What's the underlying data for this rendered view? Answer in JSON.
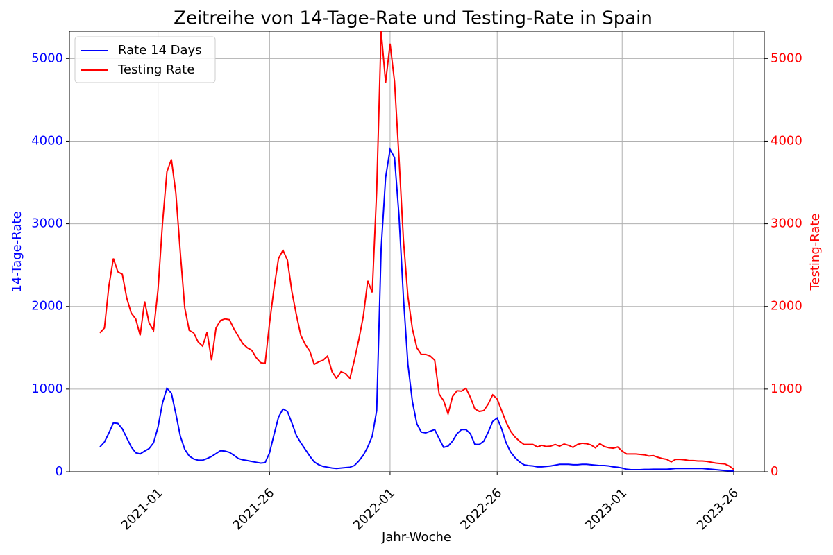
{
  "chart_data": {
    "type": "line",
    "title": "Zeitreihe von 14-Tage-Rate und Testing-Rate in Spain",
    "xlabel": "Jahr-Woche",
    "ylabel": "14-Tage-Rate",
    "y2label": "Testing-Rate",
    "categories": [
      null,
      null,
      null,
      null,
      null,
      null,
      null,
      null,
      null,
      null,
      null,
      null,
      null,
      "2021-01",
      null,
      null,
      null,
      null,
      null,
      null,
      null,
      null,
      null,
      null,
      null,
      null,
      null,
      null,
      null,
      null,
      null,
      null,
      null,
      null,
      null,
      null,
      null,
      null,
      "2021-26",
      null,
      null,
      null,
      null,
      null,
      null,
      null,
      null,
      null,
      null,
      null,
      null,
      null,
      null,
      null,
      null,
      null,
      null,
      null,
      null,
      null,
      null,
      null,
      null,
      null,
      null,
      "2022-01",
      null,
      null,
      null,
      null,
      null,
      null,
      null,
      null,
      null,
      null,
      null,
      null,
      null,
      null,
      null,
      null,
      null,
      null,
      null,
      null,
      null,
      null,
      null,
      "2022-26",
      null,
      null,
      null,
      null,
      null,
      null,
      null,
      null,
      null,
      null,
      null,
      null,
      null,
      null,
      null,
      null,
      null,
      null,
      null,
      null,
      null,
      null,
      null,
      null,
      null,
      null,
      null,
      "2023-01",
      null,
      null,
      null,
      null,
      null,
      null,
      null,
      null,
      null,
      null,
      null,
      null,
      null,
      null,
      null,
      null,
      null,
      null,
      null,
      null,
      null,
      null,
      null,
      null,
      "2023-26"
    ],
    "series": [
      {
        "name": "Rate 14 Days",
        "color": "#0000ff",
        "values": [
          300,
          360,
          470,
          590,
          585,
          520,
          410,
          300,
          230,
          215,
          250,
          280,
          350,
          540,
          830,
          1010,
          950,
          700,
          430,
          270,
          190,
          155,
          140,
          140,
          160,
          185,
          220,
          255,
          250,
          235,
          200,
          160,
          145,
          135,
          125,
          115,
          105,
          110,
          230,
          450,
          660,
          760,
          730,
          590,
          440,
          350,
          270,
          190,
          120,
          85,
          65,
          55,
          45,
          40,
          45,
          50,
          55,
          75,
          130,
          200,
          300,
          430,
          740,
          2700,
          3560,
          3900,
          3800,
          3100,
          2100,
          1300,
          850,
          580,
          480,
          470,
          490,
          510,
          400,
          295,
          310,
          370,
          460,
          510,
          510,
          460,
          330,
          330,
          370,
          480,
          610,
          650,
          520,
          350,
          240,
          170,
          120,
          85,
          75,
          70,
          60,
          60,
          65,
          70,
          80,
          90,
          90,
          90,
          85,
          85,
          90,
          90,
          85,
          80,
          75,
          75,
          70,
          60,
          55,
          45,
          30,
          25,
          25,
          25,
          28,
          28,
          30,
          30,
          30,
          30,
          35,
          40,
          40,
          40,
          40,
          40,
          40,
          40,
          35,
          30,
          25,
          20,
          15,
          12,
          10
        ]
      },
      {
        "name": "Testing Rate",
        "color": "#ff0000",
        "axis": "y2",
        "values": [
          1680,
          1740,
          2250,
          2580,
          2420,
          2390,
          2100,
          1920,
          1850,
          1650,
          2060,
          1800,
          1710,
          2200,
          3000,
          3630,
          3780,
          3370,
          2650,
          1980,
          1710,
          1680,
          1570,
          1520,
          1690,
          1350,
          1740,
          1830,
          1850,
          1840,
          1730,
          1640,
          1550,
          1500,
          1470,
          1380,
          1320,
          1310,
          1800,
          2220,
          2580,
          2680,
          2560,
          2180,
          1900,
          1650,
          1540,
          1460,
          1300,
          1330,
          1350,
          1400,
          1210,
          1130,
          1210,
          1190,
          1130,
          1350,
          1600,
          1880,
          2310,
          2170,
          3400,
          5330,
          4710,
          5180,
          4720,
          3800,
          2800,
          2120,
          1730,
          1500,
          1420,
          1420,
          1400,
          1350,
          940,
          860,
          700,
          910,
          980,
          975,
          1010,
          900,
          760,
          730,
          740,
          820,
          930,
          880,
          740,
          600,
          490,
          420,
          370,
          330,
          330,
          330,
          300,
          320,
          305,
          310,
          330,
          310,
          335,
          320,
          295,
          330,
          345,
          340,
          325,
          290,
          340,
          305,
          290,
          285,
          300,
          250,
          215,
          215,
          215,
          210,
          205,
          190,
          195,
          175,
          160,
          150,
          120,
          150,
          150,
          145,
          135,
          135,
          130,
          130,
          125,
          115,
          105,
          100,
          95,
          70,
          30
        ]
      }
    ],
    "ylim": [
      0,
      5330
    ],
    "yticks": [
      0,
      1000,
      2000,
      3000,
      4000,
      5000
    ],
    "y2lim": [
      0,
      5330
    ],
    "y2ticks": [
      0,
      1000,
      2000,
      3000,
      4000,
      5000
    ],
    "grid": true,
    "legend": "upper left"
  }
}
